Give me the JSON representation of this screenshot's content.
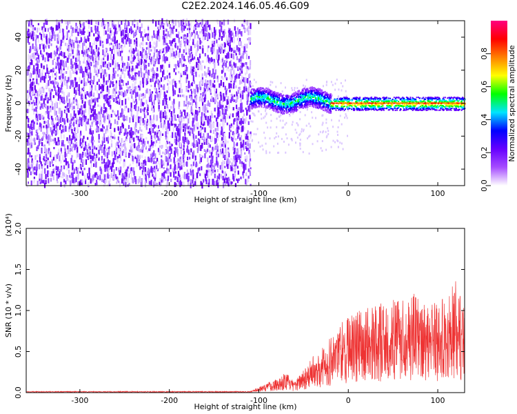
{
  "title": "C2E2.2024.146.05.46.G09",
  "chart_data": [
    {
      "type": "heatmap",
      "title": "",
      "xlabel": "Height of straight line (km)",
      "ylabel": "Frequency (Hz)",
      "xlim": [
        -360,
        130
      ],
      "ylim": [
        -50,
        50
      ],
      "xticks": [
        -300,
        -200,
        -100,
        0,
        100
      ],
      "yticks": [
        -40,
        -20,
        0,
        20,
        40
      ],
      "colorbar": {
        "label": "Normalized spectral amplitude",
        "range": [
          0.0,
          1.0
        ],
        "ticks": [
          "0.0",
          "0.2",
          "0.4",
          "0.6",
          "0.8"
        ],
        "colors": [
          "#ffffff",
          "#a64dff",
          "#6600ff",
          "#0000ff",
          "#00e5ff",
          "#00ff00",
          "#ffff00",
          "#ff8000",
          "#ff0000",
          "#ff0080"
        ]
      },
      "regions": [
        {
          "x_range": [
            -360,
            -110
          ],
          "y_range": [
            -50,
            50
          ],
          "amplitude": 0.15,
          "description": "broadband noise"
        },
        {
          "x_range": [
            -110,
            -20
          ],
          "y_center": 2,
          "y_halfwidth": 6,
          "amplitude": 0.45
        },
        {
          "x_range": [
            -20,
            130
          ],
          "y_center": 0,
          "y_halfwidth": 2,
          "amplitude": 0.95
        }
      ]
    },
    {
      "type": "line",
      "title": "",
      "xlabel": "Height of straight line (km)",
      "ylabel": "SNR (10 * v/v)",
      "yscale_label": "(x10⁴)",
      "xlim": [
        -360,
        130
      ],
      "ylim": [
        0,
        2.0
      ],
      "xticks": [
        -300,
        -200,
        -100,
        0,
        100
      ],
      "yticks": [
        "0.0",
        "0.5",
        "1.0",
        "1.5",
        "2.0"
      ],
      "series": [
        {
          "color": "#ee3333",
          "x": [
            -360,
            -300,
            -200,
            -110,
            -100,
            -90,
            -80,
            -70,
            -60,
            -50,
            -40,
            -30,
            -20,
            -10,
            0,
            10,
            20,
            30,
            40,
            50,
            60,
            70,
            80,
            90,
            100,
            110,
            120,
            130
          ],
          "y": [
            0.01,
            0.01,
            0.01,
            0.01,
            0.06,
            0.1,
            0.14,
            0.2,
            0.1,
            0.25,
            0.35,
            0.45,
            0.55,
            0.7,
            0.75,
            0.8,
            0.85,
            0.87,
            0.88,
            0.9,
            0.95,
            1.0,
            0.9,
            0.95,
            0.9,
            0.95,
            1.1,
            0.85
          ]
        }
      ]
    }
  ]
}
